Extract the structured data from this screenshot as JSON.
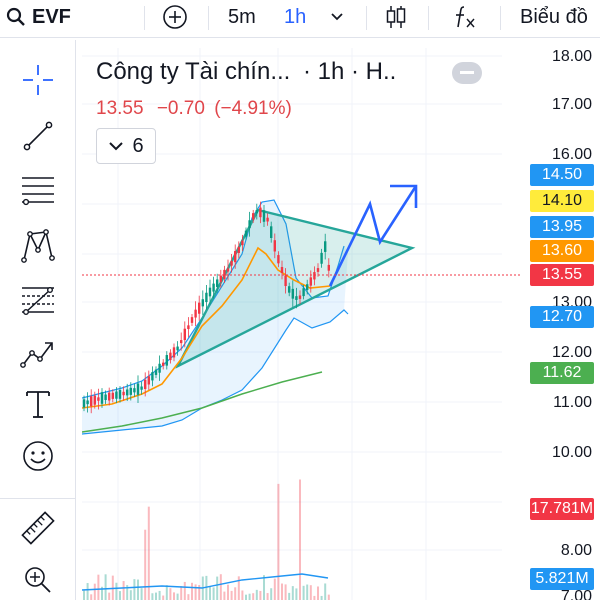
{
  "toolbar": {
    "symbol": "EVF",
    "interval_5m": "5m",
    "interval_1h": "1h",
    "chart_type_label": "Biểu đồ"
  },
  "legend": {
    "title": "Công ty Tài chín...",
    "interval": "· 1h · H..",
    "price": "13.55",
    "change": "−0.70",
    "change_pct": "(−4.91%)",
    "collapsed_count": "6"
  },
  "price_axis": {
    "ticks": [
      "18.00",
      "17.00",
      "16.00",
      "13.00",
      "12.00",
      "11.00",
      "10.00",
      "8.00",
      "7.00"
    ]
  },
  "badges": [
    {
      "label": "14.50",
      "bg": "#2196f3",
      "fg": "#ffffff"
    },
    {
      "label": "14.10",
      "bg": "#ffeb3b",
      "fg": "#131722"
    },
    {
      "label": "13.95",
      "bg": "#2196f3",
      "fg": "#ffffff"
    },
    {
      "label": "13.60",
      "bg": "#ff9800",
      "fg": "#ffffff"
    },
    {
      "label": "13.55",
      "bg": "#f23645",
      "fg": "#ffffff"
    },
    {
      "label": "12.70",
      "bg": "#2196f3",
      "fg": "#ffffff"
    },
    {
      "label": "11.62",
      "bg": "#4caf50",
      "fg": "#ffffff"
    },
    {
      "label": "17.781M",
      "bg": "#f23645",
      "fg": "#ffffff"
    },
    {
      "label": "5.821M",
      "bg": "#2196f3",
      "fg": "#ffffff"
    }
  ],
  "colors": {
    "accent": "#2962ff",
    "up": "#089981",
    "down": "#f23645",
    "bollinger": "#2196f3",
    "ma_orange": "#ff9800",
    "ma_green": "#4caf50",
    "triangle": "#26a69a"
  },
  "icons": [
    "search-icon",
    "plus-circle-icon",
    "chevron-down-icon",
    "candles-icon",
    "fx-icon",
    "crosshair-icon",
    "trendline-icon",
    "fib-lines-icon",
    "pattern-icon",
    "prediction-icon",
    "path-icon",
    "text-icon",
    "emoji-icon",
    "ruler-icon",
    "zoom-in-icon",
    "minus-icon"
  ]
}
